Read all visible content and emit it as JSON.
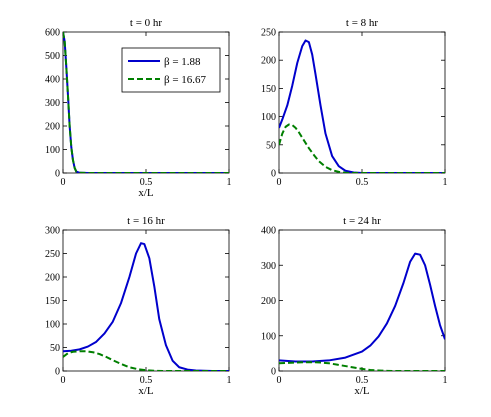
{
  "chart_data": [
    {
      "type": "line",
      "title": "t = 0 hr",
      "xlabel": "x/L",
      "ylabel": "",
      "xlim": [
        0,
        1
      ],
      "ylim": [
        0,
        600
      ],
      "xticks": [
        "0",
        "0.5",
        "1"
      ],
      "yticks": [
        "0",
        "100",
        "200",
        "300",
        "400",
        "500",
        "600"
      ],
      "legend": {
        "placement": "top-right",
        "entries": [
          "β = 1.88",
          "β = 16.67"
        ]
      },
      "series": [
        {
          "name": "β = 1.88",
          "color": "#0000cc",
          "dash": "solid",
          "x": [
            0,
            0.01,
            0.02,
            0.03,
            0.04,
            0.05,
            0.06,
            0.07,
            0.08,
            0.1,
            0.15,
            1.0
          ],
          "y": [
            600,
            560,
            450,
            330,
            200,
            110,
            55,
            22,
            6,
            1,
            0,
            0
          ]
        },
        {
          "name": "β = 16.67",
          "color": "#007f00",
          "dash": "dashed",
          "x": [
            0,
            0.01,
            0.02,
            0.03,
            0.04,
            0.05,
            0.06,
            0.07,
            0.08,
            0.1,
            0.15,
            1.0
          ],
          "y": [
            600,
            560,
            450,
            330,
            200,
            110,
            55,
            22,
            6,
            1,
            0,
            0
          ]
        }
      ]
    },
    {
      "type": "line",
      "title": "t = 8 hr",
      "xlabel": "",
      "ylabel": "",
      "xlim": [
        0,
        1
      ],
      "ylim": [
        0,
        250
      ],
      "xticks": [
        "0",
        "0.5",
        "1"
      ],
      "yticks": [
        "0",
        "50",
        "100",
        "150",
        "200",
        "250"
      ],
      "series": [
        {
          "name": "β = 1.88",
          "color": "#0000cc",
          "dash": "solid",
          "x": [
            0,
            0.02,
            0.05,
            0.08,
            0.11,
            0.14,
            0.16,
            0.18,
            0.2,
            0.22,
            0.25,
            0.28,
            0.32,
            0.36,
            0.4,
            0.45,
            0.5,
            0.6,
            1.0
          ],
          "y": [
            80,
            95,
            120,
            155,
            195,
            225,
            235,
            232,
            210,
            175,
            120,
            70,
            30,
            12,
            4,
            1,
            0,
            0,
            0
          ]
        },
        {
          "name": "β = 16.67",
          "color": "#007f00",
          "dash": "dashed",
          "x": [
            0,
            0.02,
            0.04,
            0.06,
            0.08,
            0.1,
            0.12,
            0.15,
            0.18,
            0.21,
            0.24,
            0.28,
            0.32,
            0.36,
            0.4,
            0.45,
            1.0
          ],
          "y": [
            50,
            70,
            82,
            86,
            85,
            80,
            72,
            58,
            44,
            32,
            21,
            11,
            5,
            2,
            0.5,
            0,
            0
          ]
        }
      ]
    },
    {
      "type": "line",
      "title": "t = 16 hr",
      "xlabel": "x/L",
      "ylabel": "",
      "xlim": [
        0,
        1
      ],
      "ylim": [
        0,
        300
      ],
      "xticks": [
        "0",
        "0.5",
        "1"
      ],
      "yticks": [
        "0",
        "50",
        "100",
        "150",
        "200",
        "250",
        "300"
      ],
      "series": [
        {
          "name": "β = 1.88",
          "color": "#0000cc",
          "dash": "solid",
          "x": [
            0,
            0.05,
            0.1,
            0.15,
            0.2,
            0.25,
            0.3,
            0.35,
            0.4,
            0.44,
            0.47,
            0.49,
            0.52,
            0.55,
            0.58,
            0.62,
            0.66,
            0.7,
            0.75,
            0.8,
            0.9,
            1.0
          ],
          "y": [
            42,
            43,
            46,
            52,
            62,
            80,
            105,
            145,
            200,
            250,
            272,
            270,
            240,
            180,
            110,
            55,
            22,
            8,
            3,
            1,
            0,
            0
          ]
        },
        {
          "name": "β = 16.67",
          "color": "#007f00",
          "dash": "dashed",
          "x": [
            0,
            0.03,
            0.06,
            0.1,
            0.14,
            0.18,
            0.22,
            0.26,
            0.3,
            0.35,
            0.4,
            0.45,
            0.5,
            0.55,
            0.6,
            1.0
          ],
          "y": [
            30,
            38,
            41,
            42,
            42,
            40,
            36,
            30,
            23,
            15,
            8,
            4,
            1.5,
            0.5,
            0,
            0
          ]
        }
      ]
    },
    {
      "type": "line",
      "title": "t = 24 hr",
      "xlabel": "x/L",
      "ylabel": "",
      "xlim": [
        0,
        1
      ],
      "ylim": [
        0,
        400
      ],
      "xticks": [
        "0",
        "0.5",
        "1"
      ],
      "yticks": [
        "0",
        "100",
        "200",
        "300",
        "400"
      ],
      "series": [
        {
          "name": "β = 1.88",
          "color": "#0000cc",
          "dash": "solid",
          "x": [
            0,
            0.1,
            0.2,
            0.3,
            0.4,
            0.5,
            0.55,
            0.6,
            0.65,
            0.7,
            0.75,
            0.79,
            0.82,
            0.85,
            0.88,
            0.91,
            0.94,
            0.97,
            1.0
          ],
          "y": [
            30,
            27,
            27,
            30,
            38,
            55,
            72,
            98,
            135,
            185,
            250,
            310,
            333,
            330,
            300,
            245,
            185,
            130,
            90
          ]
        },
        {
          "name": "β = 16.67",
          "color": "#007f00",
          "dash": "dashed",
          "x": [
            0,
            0.05,
            0.1,
            0.15,
            0.2,
            0.25,
            0.3,
            0.35,
            0.4,
            0.45,
            0.5,
            0.55,
            0.6,
            0.65,
            0.7,
            1.0
          ],
          "y": [
            22,
            23,
            24,
            25,
            25,
            24,
            22,
            18,
            14,
            10,
            6,
            3,
            1.5,
            0.5,
            0,
            0
          ]
        }
      ]
    }
  ]
}
